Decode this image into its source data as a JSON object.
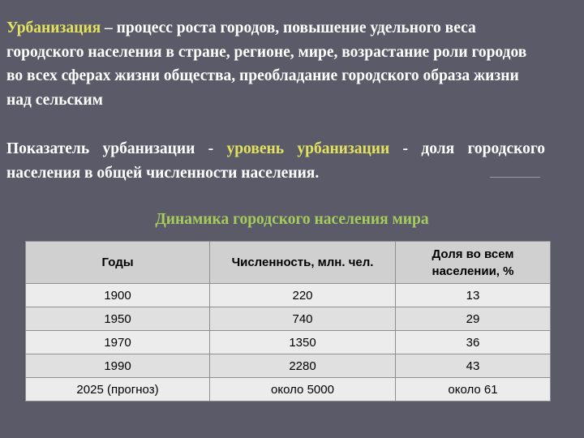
{
  "definition": {
    "term": "Урбанизация",
    "text": " – процесс роста городов, повышение удельного веса городского населения в стране, регионе, мире, возрастание роли городов во всех сферах жизни общества, преобладание городского образа жизни над сельским"
  },
  "indicator": {
    "prefix": "Показатель урбанизации - ",
    "highlight": "уровень урбанизации",
    "suffix": " - доля городского населения в общей численности населения."
  },
  "table": {
    "caption": "Динамика городского населения мира",
    "headers": [
      "Годы",
      "Численность, млн. чел.",
      "Доля во всем населении, %"
    ],
    "rows": [
      [
        "1900",
        "220",
        "13"
      ],
      [
        "1950",
        "740",
        "29"
      ],
      [
        "1970",
        "1350",
        "36"
      ],
      [
        "1990",
        "2280",
        "43"
      ],
      [
        "2025 (прогноз)",
        "около 5000",
        "около 61"
      ]
    ]
  },
  "colors": {
    "background": "#5a5a69",
    "highlight": "#e3e25e",
    "caption": "#a6ca5c"
  }
}
